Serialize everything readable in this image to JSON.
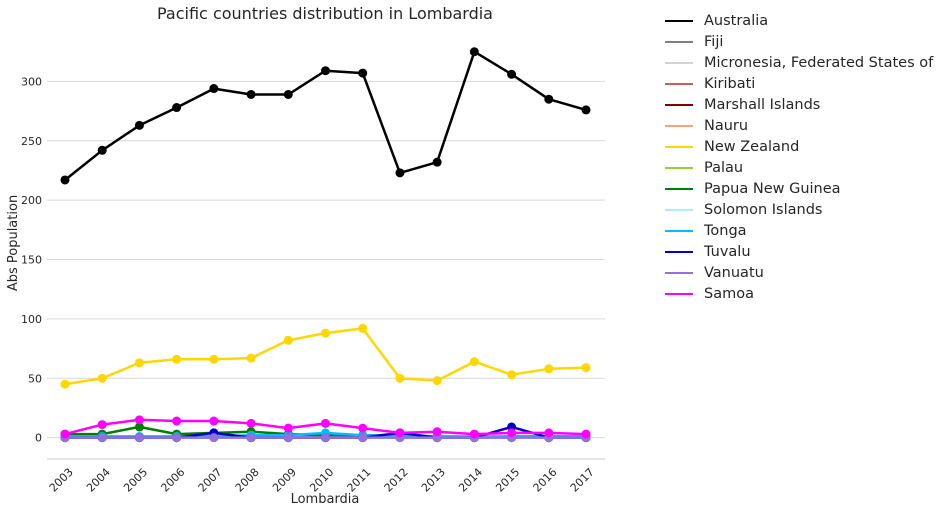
{
  "chart_data": {
    "type": "line",
    "title": "Pacific countries distribution in Lombardia",
    "xlabel": "Lombardia",
    "ylabel": "Abs Population",
    "categories": [
      "2003",
      "2004",
      "2005",
      "2006",
      "2007",
      "2008",
      "2009",
      "2010",
      "2011",
      "2012",
      "2013",
      "2014",
      "2015",
      "2016",
      "2017"
    ],
    "ylim": [
      -18,
      345
    ],
    "yticks": [
      0,
      50,
      100,
      150,
      200,
      250,
      300
    ],
    "grid": "horizontal",
    "legend_position": "outside-right",
    "series": [
      {
        "name": "Australia",
        "color": "#000000",
        "values": [
          217,
          242,
          263,
          278,
          294,
          289,
          289,
          309,
          307,
          223,
          232,
          325,
          306,
          285,
          276
        ]
      },
      {
        "name": "Fiji",
        "color": "#808080",
        "values": [
          0,
          0,
          0,
          0,
          0,
          0,
          0,
          0,
          0,
          0,
          0,
          0,
          0,
          0,
          0
        ]
      },
      {
        "name": "Micronesia, Federated States of",
        "color": "#d3d3d3",
        "values": [
          0,
          0,
          0,
          0,
          0,
          0,
          0,
          0,
          0,
          0,
          0,
          0,
          0,
          0,
          0
        ]
      },
      {
        "name": "Kiribati",
        "color": "#cd5c5c",
        "values": [
          0,
          0,
          0,
          0,
          0,
          0,
          0,
          0,
          0,
          0,
          0,
          0,
          0,
          0,
          0
        ]
      },
      {
        "name": "Marshall Islands",
        "color": "#800000",
        "values": [
          0,
          0,
          0,
          0,
          0,
          0,
          0,
          0,
          0,
          0,
          0,
          0,
          0,
          0,
          0
        ]
      },
      {
        "name": "Nauru",
        "color": "#ffa07a",
        "values": [
          0,
          0,
          0,
          0,
          0,
          0,
          0,
          0,
          0,
          0,
          0,
          0,
          0,
          0,
          0
        ]
      },
      {
        "name": "New Zealand",
        "color": "#ffd700",
        "values": [
          45,
          50,
          63,
          66,
          66,
          67,
          82,
          88,
          92,
          50,
          48,
          64,
          53,
          58,
          59
        ]
      },
      {
        "name": "Palau",
        "color": "#9acd32",
        "values": [
          0,
          0,
          0,
          0,
          0,
          0,
          0,
          0,
          0,
          0,
          0,
          0,
          0,
          0,
          0
        ]
      },
      {
        "name": "Papua New Guinea",
        "color": "#008000",
        "values": [
          3,
          3,
          9,
          3,
          4,
          5,
          3,
          2,
          2,
          1,
          0,
          0,
          1,
          1,
          1
        ]
      },
      {
        "name": "Solomon Islands",
        "color": "#afeeee",
        "values": [
          0,
          0,
          0,
          0,
          0,
          0,
          0,
          0,
          0,
          0,
          0,
          0,
          0,
          0,
          0
        ]
      },
      {
        "name": "Tonga",
        "color": "#00bfff",
        "values": [
          1,
          1,
          1,
          1,
          1,
          2,
          2,
          4,
          2,
          2,
          1,
          1,
          1,
          1,
          1
        ]
      },
      {
        "name": "Tuvalu",
        "color": "#0000cd",
        "values": [
          0,
          0,
          0,
          0,
          4,
          0,
          0,
          0,
          0,
          4,
          0,
          0,
          9,
          0,
          0
        ]
      },
      {
        "name": "Vanuatu",
        "color": "#9370db",
        "values": [
          0,
          0,
          0,
          0,
          0,
          0,
          0,
          0,
          0,
          0,
          0,
          0,
          0,
          0,
          0
        ]
      },
      {
        "name": "Samoa",
        "color": "#ff00ff",
        "values": [
          3,
          11,
          15,
          14,
          14,
          12,
          8,
          12,
          8,
          4,
          5,
          3,
          4,
          4,
          3
        ]
      }
    ]
  }
}
